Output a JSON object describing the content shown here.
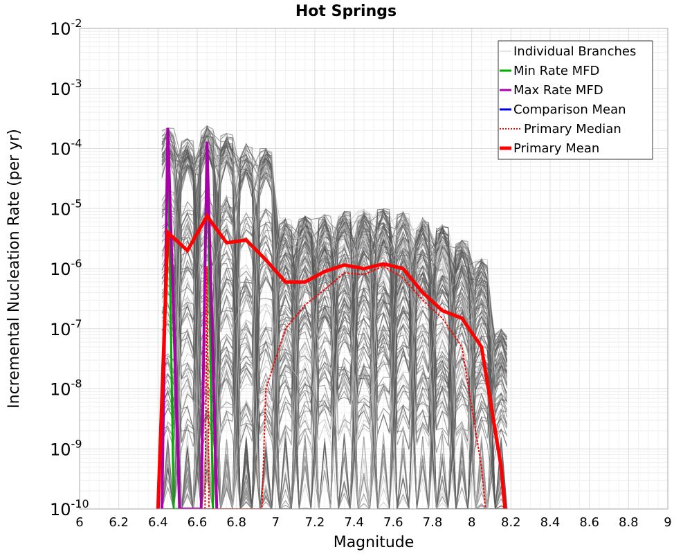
{
  "chart_data": {
    "type": "line",
    "title": "Hot Springs",
    "xlabel": "Magnitude",
    "ylabel": "Incremental Nucleation Rate (per yr)",
    "xlim": [
      6,
      9
    ],
    "ylim": [
      1e-10,
      0.01
    ],
    "yscale": "log",
    "x_ticks": [
      "6",
      "6.2",
      "6.4",
      "6.6",
      "6.8",
      "7",
      "7.2",
      "7.4",
      "7.6",
      "7.8",
      "8",
      "8.2",
      "8.4",
      "8.6",
      "8.8",
      "9"
    ],
    "y_ticks": [
      {
        "base": "10",
        "exp": "-2"
      },
      {
        "base": "10",
        "exp": "-3"
      },
      {
        "base": "10",
        "exp": "-4"
      },
      {
        "base": "10",
        "exp": "-5"
      },
      {
        "base": "10",
        "exp": "-6"
      },
      {
        "base": "10",
        "exp": "-7"
      },
      {
        "base": "10",
        "exp": "-8"
      },
      {
        "base": "10",
        "exp": "-9"
      },
      {
        "base": "10",
        "exp": "-10"
      }
    ],
    "grid": true,
    "legend_position": "top-right",
    "legend": [
      {
        "label": "Individual Branches",
        "color": "#c8c8c8",
        "style": "thin"
      },
      {
        "label": "Min Rate MFD",
        "color": "#00aa00",
        "style": "solid"
      },
      {
        "label": "Max Rate MFD",
        "color": "#aa00aa",
        "style": "solid"
      },
      {
        "label": "Comparison Mean",
        "color": "#0000dd",
        "style": "solid"
      },
      {
        "label": "Primary Median",
        "color": "#ff0000",
        "style": "dotted"
      },
      {
        "label": "Primary Mean",
        "color": "#ff0000",
        "style": "thick"
      }
    ],
    "branch_peak_magnitudes": [
      6.45,
      6.55,
      6.65,
      6.75,
      6.85,
      6.95,
      7.05,
      7.15,
      7.25,
      7.35,
      7.45,
      7.55,
      7.65,
      7.75,
      7.85,
      7.95,
      8.05,
      8.15
    ],
    "branch_peak_values": [
      0.00022,
      0.00015,
      0.00024,
      0.00018,
      0.00012,
      0.0001,
      7e-06,
      7.5e-06,
      8e-06,
      9e-06,
      1e-05,
      1e-05,
      9e-06,
      7e-06,
      5.5e-06,
      3e-06,
      1.5e-06,
      1e-07
    ],
    "series": [
      {
        "name": "Primary Mean",
        "color": "#ff0000",
        "x": [
          6.4,
          6.45,
          6.55,
          6.65,
          6.75,
          6.85,
          6.95,
          7.05,
          7.15,
          7.25,
          7.35,
          7.45,
          7.55,
          7.65,
          7.75,
          7.85,
          7.95,
          8.05,
          8.15,
          8.17
        ],
        "values": [
          1e-10,
          4e-06,
          2e-06,
          7.5e-06,
          2.7e-06,
          3e-06,
          1.4e-06,
          6e-07,
          6e-07,
          9e-07,
          1.15e-06,
          1e-06,
          1.2e-06,
          1e-06,
          4e-07,
          2e-07,
          1.5e-07,
          5e-08,
          5e-10,
          1e-10
        ]
      },
      {
        "name": "Primary Median",
        "color": "#ff0000",
        "x": [
          6.64,
          6.65,
          6.66,
          6.93,
          6.95,
          7.05,
          7.15,
          7.25,
          7.35,
          7.45,
          7.55,
          7.65,
          7.75,
          7.85,
          7.95,
          8.05,
          8.07
        ],
        "values": [
          1e-10,
          1.1e-06,
          1e-10,
          1e-10,
          1e-08,
          1e-07,
          2.5e-07,
          4.5e-07,
          8.5e-07,
          8e-07,
          1.1e-06,
          7e-07,
          3e-07,
          1.5e-07,
          5e-08,
          5e-10,
          1e-10
        ]
      },
      {
        "name": "Min Rate MFD",
        "color": "#00aa00",
        "x": [
          6.42,
          6.45,
          6.48,
          6.62,
          6.65,
          6.68
        ],
        "values": [
          1e-10,
          0.00022,
          1e-10,
          1e-10,
          0.00013,
          1e-10
        ]
      },
      {
        "name": "Max Rate MFD",
        "color": "#aa00aa",
        "x": [
          6.42,
          6.45,
          6.51,
          6.62,
          6.65,
          6.7
        ],
        "values": [
          1e-10,
          0.00022,
          1e-10,
          1e-10,
          0.00013,
          1e-10
        ]
      }
    ]
  }
}
